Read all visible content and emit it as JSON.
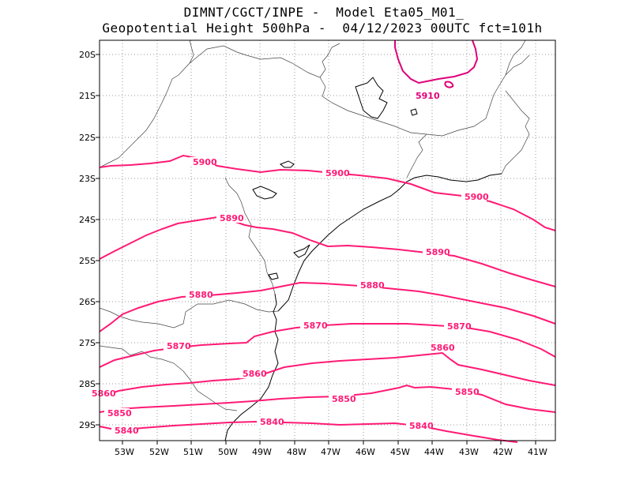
{
  "title": {
    "line1": "DIMNT/CGCT/INPE -  Model Eta05_M01_",
    "line2": "Geopotential Height 500hPa -  04/12/2023 00UTC fct=101h"
  },
  "axes": {
    "lat_labels": [
      "20S",
      "21S",
      "22S",
      "23S",
      "24S",
      "25S",
      "26S",
      "27S",
      "28S",
      "29S"
    ],
    "lon_labels": [
      "53W",
      "52W",
      "51W",
      "50W",
      "49W",
      "48W",
      "47W",
      "46W",
      "45W",
      "44W",
      "43W",
      "42W",
      "41W"
    ]
  },
  "colors": {
    "contour_main": "#ff1a75",
    "contour_alt": "#e0007a",
    "coastline": "#000000",
    "border": "#333333",
    "grid": "#999999"
  },
  "contours": [
    {
      "label": "5910",
      "label_text": "5910"
    },
    {
      "label": "5900",
      "label_text": "5900"
    },
    {
      "label": "5890",
      "label_text": "5890"
    },
    {
      "label": "5880",
      "label_text": "5880"
    },
    {
      "label": "5870",
      "label_text": "5870"
    },
    {
      "label": "5860",
      "label_text": "5860"
    },
    {
      "label": "5850",
      "label_text": "5850"
    },
    {
      "label": "5840",
      "label_text": "5840"
    }
  ]
}
